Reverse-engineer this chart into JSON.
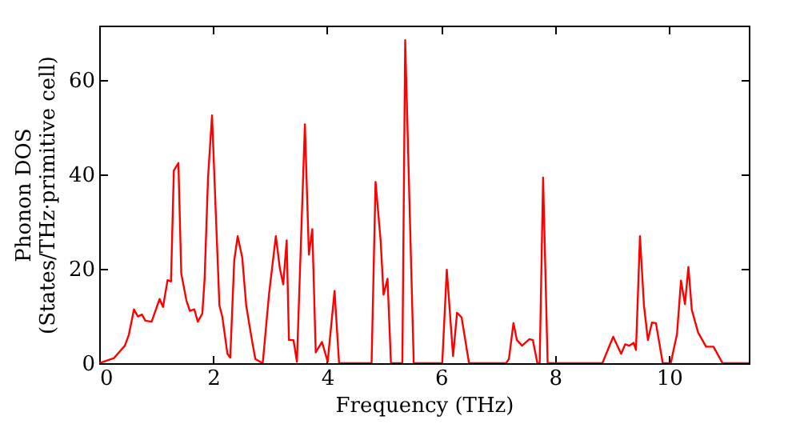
{
  "chart_data": {
    "type": "line",
    "xlabel": "Frequency (THz)",
    "ylabel": "Phonon DOS\n(States/THz·primitive cell)",
    "x": [
      0,
      0.26,
      0.45,
      0.52,
      0.61,
      0.68,
      0.75,
      0.81,
      0.92,
      1.06,
      1.12,
      1.2,
      1.26,
      1.31,
      1.39,
      1.44,
      1.53,
      1.59,
      1.67,
      1.73,
      1.81,
      1.85,
      1.91,
      1.98,
      2.04,
      2.11,
      2.16,
      2.25,
      2.3,
      2.37,
      2.43,
      2.51,
      2.58,
      2.68,
      2.74,
      2.87,
      2.98,
      3.1,
      3.17,
      3.23,
      3.29,
      3.33,
      3.41,
      3.47,
      3.61,
      3.68,
      3.74,
      3.8,
      3.91,
      4.01,
      4.13,
      4.21,
      4.78,
      4.85,
      4.94,
      4.99,
      5.06,
      5.12,
      5.32,
      5.37,
      5.52,
      6.02,
      6.1,
      6.21,
      6.28,
      6.36,
      6.49,
      7.14,
      7.19,
      7.27,
      7.33,
      7.42,
      7.55,
      7.61,
      7.69,
      7.73,
      7.79,
      7.87,
      8.83,
      9.02,
      9.16,
      9.23,
      9.3,
      9.38,
      9.42,
      9.49,
      9.56,
      9.63,
      9.7,
      9.77,
      9.89,
      10.03,
      10.14,
      10.21,
      10.28,
      10.34,
      10.4,
      10.51,
      10.65,
      10.78,
      10.94,
      11.4
    ],
    "series": [
      {
        "color": "#ff0000",
        "values": [
          0,
          1.1,
          3.7,
          6,
          11.4,
          9.9,
          10.3,
          9,
          8.8,
          13.6,
          11.9,
          17.6,
          17.3,
          40.8,
          42.4,
          19,
          13.3,
          11.1,
          11.4,
          8.8,
          10.5,
          17.9,
          39.3,
          52.5,
          33.7,
          12.2,
          9.9,
          2,
          1.2,
          21.8,
          26.9,
          22.4,
          12.2,
          4.9,
          0.9,
          0,
          14.6,
          26.9,
          20.1,
          16.7,
          26,
          4.9,
          4.9,
          0.3,
          50.6,
          23,
          28.4,
          2.3,
          4.5,
          0.3,
          15.3,
          0,
          0,
          38.4,
          25.8,
          14.5,
          17.9,
          0,
          0,
          68.4,
          0,
          0,
          19.8,
          1.5,
          10.7,
          9.7,
          0,
          0,
          0.9,
          8.5,
          4.9,
          3.7,
          5.1,
          4.9,
          0,
          0,
          39.3,
          0,
          0,
          5.6,
          2,
          4,
          3.7,
          4.3,
          2.8,
          26.9,
          12.2,
          4.9,
          8.6,
          8.5,
          0,
          0,
          6.2,
          17.5,
          12.5,
          20.4,
          11.3,
          6.5,
          3.5,
          3.5,
          0,
          0
        ]
      }
    ],
    "xlim": [
      0,
      11.4
    ],
    "ylim": [
      0,
      71.5
    ],
    "xticks": [
      0,
      2,
      4,
      6,
      8,
      10
    ],
    "yticks": [
      0,
      20,
      40,
      60
    ],
    "grid": false,
    "legend": false,
    "marker": "none",
    "line_style": "solid"
  }
}
